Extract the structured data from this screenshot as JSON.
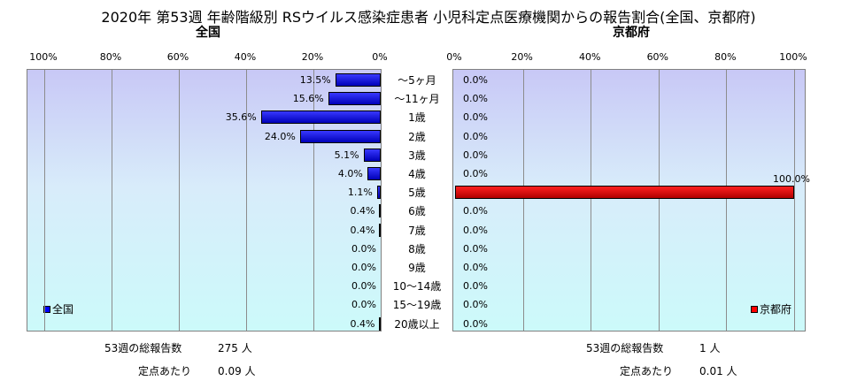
{
  "title": "2020年 第53週 年齢階級別 RSウイルス感染症患者 小児科定点医療機関からの報告割合(全国、京都府)",
  "chart_data": [
    {
      "type": "bar",
      "orientation": "horizontal",
      "direction": "right-to-left",
      "title": "全国",
      "categories": [
        "～5ヶ月",
        "～11ヶ月",
        "1歳",
        "2歳",
        "3歳",
        "4歳",
        "5歳",
        "6歳",
        "7歳",
        "8歳",
        "9歳",
        "10～14歳",
        "15～19歳",
        "20歳以上"
      ],
      "series": [
        {
          "name": "全国",
          "color": "#0000ff",
          "values": [
            13.5,
            15.6,
            35.6,
            24.0,
            5.1,
            4.0,
            1.1,
            0.4,
            0.4,
            0.0,
            0.0,
            0.0,
            0.0,
            0.4
          ],
          "labels": [
            "13.5%",
            "15.6%",
            "35.6%",
            "24.0%",
            "5.1%",
            "4.0%",
            "1.1%",
            "0.4%",
            "0.4%",
            "0.0%",
            "0.0%",
            "0.0%",
            "0.0%",
            "0.4%"
          ]
        }
      ],
      "xlim": [
        0,
        100
      ],
      "ticks": [
        "100%",
        "80%",
        "60%",
        "40%",
        "20%",
        "0%"
      ],
      "grid": true,
      "legend": "bottom-left"
    },
    {
      "type": "bar",
      "orientation": "horizontal",
      "direction": "left-to-right",
      "title": "京都府",
      "categories": [
        "～5ヶ月",
        "～11ヶ月",
        "1歳",
        "2歳",
        "3歳",
        "4歳",
        "5歳",
        "6歳",
        "7歳",
        "8歳",
        "9歳",
        "10～14歳",
        "15～19歳",
        "20歳以上"
      ],
      "series": [
        {
          "name": "京都府",
          "color": "#ff0000",
          "values": [
            0.0,
            0.0,
            0.0,
            0.0,
            0.0,
            0.0,
            100.0,
            0.0,
            0.0,
            0.0,
            0.0,
            0.0,
            0.0,
            0.0
          ],
          "labels": [
            "0.0%",
            "0.0%",
            "0.0%",
            "0.0%",
            "0.0%",
            "0.0%",
            "100.0%",
            "0.0%",
            "0.0%",
            "0.0%",
            "0.0%",
            "0.0%",
            "0.0%",
            "0.0%"
          ]
        }
      ],
      "xlim": [
        0,
        100
      ],
      "ticks": [
        "0%",
        "20%",
        "40%",
        "60%",
        "80%",
        "100%"
      ],
      "grid": true,
      "legend": "bottom-right"
    }
  ],
  "footer": {
    "left": {
      "total_label": "53週の総報告数",
      "total_value": "275 人",
      "per_label": "定点あたり",
      "per_value": "0.09 人"
    },
    "right": {
      "total_label": "53週の総報告数",
      "total_value": "1 人",
      "per_label": "定点あたり",
      "per_value": "0.01 人"
    }
  }
}
